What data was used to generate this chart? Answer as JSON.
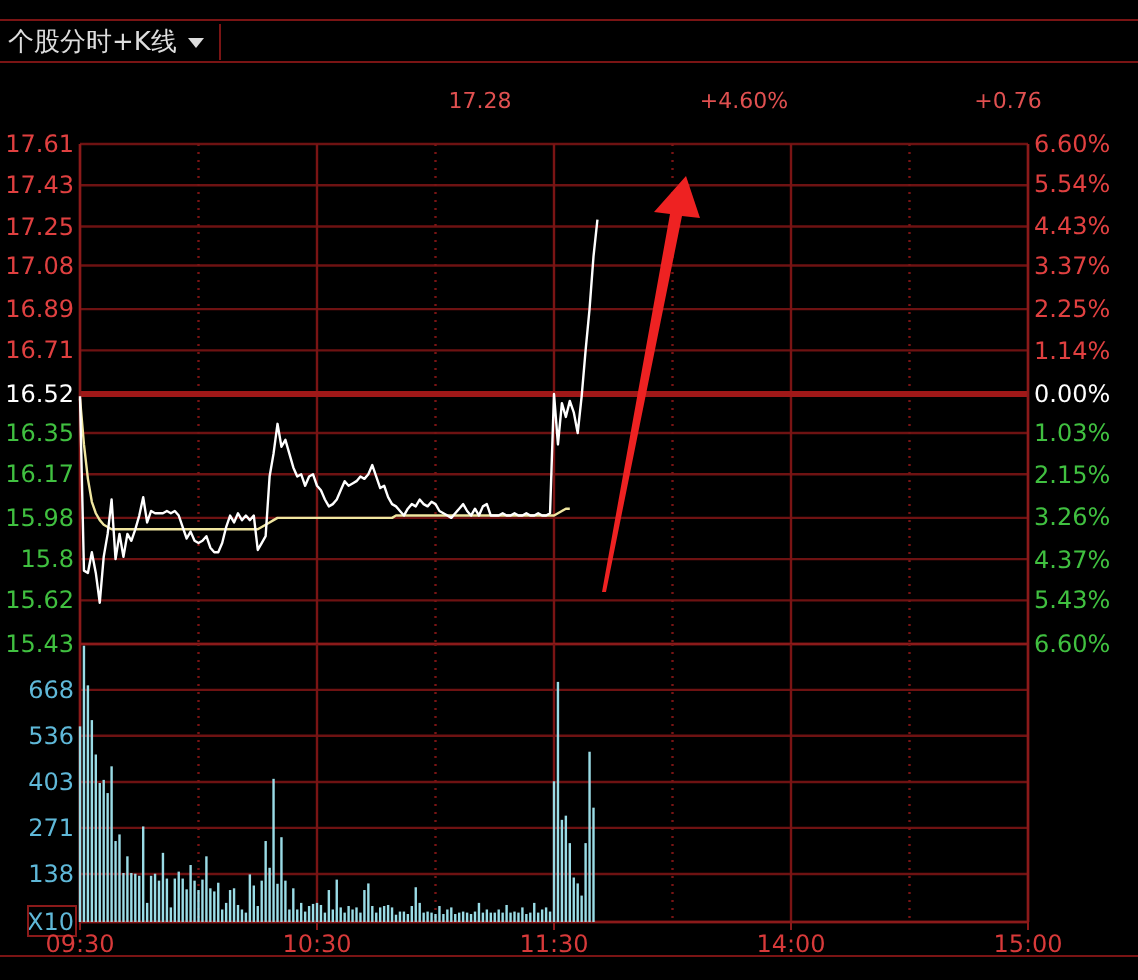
{
  "chart_data": [
    {
      "type": "line",
      "title": "个股分时+K线",
      "annotations": [
        "17.28",
        "+4.60%",
        "+0.76"
      ],
      "categories": [
        null,
        null,
        null,
        null,
        null,
        null,
        null,
        null,
        null,
        null,
        null,
        null,
        null,
        null,
        null,
        null,
        null,
        null,
        null,
        null,
        null,
        null,
        null,
        null,
        null,
        null,
        null,
        null,
        null,
        null,
        null,
        null,
        null,
        null,
        null,
        null,
        null,
        null,
        null,
        null,
        null,
        null,
        null,
        null,
        null,
        null,
        null,
        null,
        null,
        null,
        null,
        null,
        null,
        null,
        null,
        null,
        null,
        null,
        null,
        null,
        null,
        null,
        null,
        null,
        null,
        null,
        null,
        null,
        null,
        null,
        null,
        null,
        null,
        null,
        null,
        null,
        null,
        null,
        null,
        null,
        null,
        null,
        null,
        null,
        null,
        null,
        null,
        null,
        null,
        null,
        null,
        null,
        null,
        null,
        null,
        null,
        null,
        null,
        null,
        null,
        null,
        null,
        null,
        null,
        null,
        null,
        null,
        null,
        null,
        null,
        null,
        null,
        null,
        null,
        null,
        null,
        null,
        null,
        null,
        null,
        null,
        null,
        null,
        null,
        null,
        null,
        null,
        null,
        null,
        null,
        null,
        null,
        null,
        null,
        null,
        null,
        null,
        null,
        null,
        null,
        null,
        null,
        null,
        null,
        null,
        null,
        null,
        null,
        null,
        null,
        null,
        null,
        null,
        null,
        null,
        null,
        null,
        null,
        null,
        null,
        null,
        null,
        null,
        null,
        null,
        null,
        null,
        null,
        null,
        null,
        null,
        null,
        null,
        null,
        null,
        null,
        null,
        null,
        null,
        null,
        null,
        null,
        null,
        null,
        null,
        null,
        null,
        null,
        null,
        null,
        null,
        null,
        null,
        null,
        null,
        null,
        null,
        null,
        null,
        null,
        null,
        null,
        null,
        null,
        null,
        null,
        null,
        null,
        null,
        null,
        null,
        null,
        null,
        null,
        null,
        null,
        null,
        null,
        null,
        null,
        null,
        null,
        null,
        null,
        null,
        null,
        null,
        null,
        null,
        null,
        null,
        null,
        null,
        null,
        null,
        null,
        null,
        null,
        null,
        null,
        null
      ],
      "ylim": [
        15.43,
        17.61
      ],
      "yticks": [
        17.61,
        17.43,
        17.25,
        17.08,
        16.89,
        16.71,
        16.52,
        16.35,
        16.17,
        15.98,
        15.8,
        15.62,
        15.43
      ],
      "y2lim": [
        -6.6,
        6.6
      ],
      "y2ticks": [
        {
          "value": 6.6,
          "label": "6.60%"
        },
        {
          "value": 5.54,
          "label": "5.54%"
        },
        {
          "value": 4.43,
          "label": "4.43%"
        },
        {
          "value": 3.37,
          "label": "3.37%"
        },
        {
          "value": 2.25,
          "label": "2.25%"
        },
        {
          "value": 1.14,
          "label": "1.14%"
        },
        {
          "value": 0,
          "label": "0.00%"
        },
        {
          "value": -1.03,
          "label": "1.03%"
        },
        {
          "value": -2.15,
          "label": "2.15%"
        },
        {
          "value": -3.26,
          "label": "3.26%"
        },
        {
          "value": -4.37,
          "label": "4.37%"
        },
        {
          "value": -5.43,
          "label": "5.43%"
        },
        {
          "value": -6.6,
          "label": "6.60%"
        }
      ],
      "tick_labels": "y",
      "grid": true,
      "ref_lines": [
        {
          "axis": "y",
          "value": 16.52,
          "color": "#a01818"
        }
      ],
      "series": [
        {
          "color": "#f0e6a0",
          "values": [
            16.5,
            16.3,
            16.15,
            16.05,
            16.0,
            15.97,
            15.95,
            15.94,
            15.93,
            15.93,
            15.93,
            15.93,
            15.93,
            15.93,
            15.93,
            15.93,
            15.93,
            15.93,
            15.93,
            15.93,
            15.93,
            15.93,
            15.93,
            15.93,
            15.93,
            15.93,
            15.93,
            15.93,
            15.93,
            15.93,
            15.93,
            15.93,
            15.93,
            15.93,
            15.93,
            15.93,
            15.93,
            15.93,
            15.93,
            15.93,
            15.93,
            15.93,
            15.93,
            15.93,
            15.93,
            15.93,
            15.94,
            15.95,
            15.96,
            15.97,
            15.98,
            15.98,
            15.98,
            15.98,
            15.98,
            15.98,
            15.98,
            15.98,
            15.98,
            15.98,
            15.98,
            15.98,
            15.98,
            15.98,
            15.98,
            15.98,
            15.98,
            15.98,
            15.98,
            15.98,
            15.98,
            15.98,
            15.98,
            15.98,
            15.98,
            15.98,
            15.98,
            15.98,
            15.98,
            15.98,
            15.99,
            15.99,
            15.99,
            15.99,
            15.99,
            15.99,
            15.99,
            15.99,
            15.99,
            15.99,
            15.99,
            15.99,
            15.99,
            15.99,
            15.99,
            15.99,
            15.99,
            15.99,
            15.99,
            15.99,
            15.99,
            15.99,
            15.99,
            15.99,
            15.99,
            15.99,
            15.99,
            15.99,
            15.99,
            15.99,
            15.99,
            15.99,
            15.99,
            15.99,
            15.99,
            15.99,
            15.99,
            15.99,
            15.99,
            15.99,
            15.99,
            16.0,
            16.01,
            16.02,
            16.02,
            null,
            null,
            null,
            null,
            null,
            null,
            null,
            null,
            null,
            null,
            null,
            null,
            null,
            null,
            null,
            null,
            null,
            null,
            null,
            null,
            null,
            null,
            null,
            null,
            null,
            null,
            null,
            null,
            null,
            null,
            null,
            null,
            null,
            null,
            null,
            null,
            null,
            null,
            null,
            null,
            null,
            null,
            null,
            null,
            null,
            null,
            null,
            null,
            null,
            null,
            null,
            null,
            null,
            null,
            null,
            null,
            null,
            null,
            null,
            null,
            null,
            null,
            null,
            null,
            null,
            null,
            null,
            null,
            null,
            null,
            null,
            null,
            null,
            null,
            null,
            null,
            null,
            null,
            null,
            null,
            null,
            null,
            null,
            null,
            null,
            null,
            null,
            null,
            null,
            null,
            null,
            null,
            null,
            null,
            null,
            null,
            null,
            null,
            null,
            null,
            null,
            null,
            null,
            null,
            null,
            null,
            null,
            null,
            null,
            null,
            null,
            null,
            null,
            null,
            null,
            null
          ]
        },
        {
          "color": "#ffffff",
          "values": [
            16.51,
            15.75,
            15.74,
            15.83,
            15.74,
            15.61,
            15.81,
            15.91,
            16.06,
            15.8,
            15.91,
            15.81,
            15.91,
            15.88,
            15.93,
            15.99,
            16.07,
            15.96,
            16.01,
            16.0,
            16.0,
            16.0,
            16.01,
            16.0,
            16.01,
            15.99,
            15.94,
            15.89,
            15.92,
            15.88,
            15.87,
            15.88,
            15.9,
            15.85,
            15.83,
            15.83,
            15.87,
            15.94,
            15.99,
            15.96,
            16.0,
            15.97,
            15.99,
            15.97,
            15.99,
            15.84,
            15.87,
            15.9,
            16.16,
            16.26,
            16.39,
            16.29,
            16.32,
            16.26,
            16.2,
            16.16,
            16.17,
            16.12,
            16.16,
            16.17,
            16.12,
            16.1,
            16.06,
            16.03,
            16.04,
            16.06,
            16.1,
            16.14,
            16.12,
            16.13,
            16.14,
            16.16,
            16.15,
            16.17,
            16.21,
            16.16,
            16.11,
            16.12,
            16.07,
            16.04,
            16.03,
            16.01,
            15.99,
            16.02,
            16.04,
            16.03,
            16.06,
            16.04,
            16.03,
            16.05,
            16.04,
            16.01,
            16.0,
            15.99,
            15.98,
            16.0,
            16.02,
            16.04,
            16.01,
            15.99,
            16.02,
            15.99,
            16.03,
            16.04,
            15.99,
            15.99,
            15.99,
            16.0,
            15.99,
            15.99,
            16.0,
            15.99,
            15.99,
            16.0,
            15.99,
            15.99,
            16.0,
            15.99,
            15.99,
            16.0,
            16.52,
            16.3,
            16.48,
            16.42,
            16.49,
            16.44,
            16.35,
            16.51,
            16.71,
            16.89,
            17.12,
            17.28,
            null,
            null,
            null,
            null,
            null,
            null,
            null,
            null,
            null,
            null,
            null,
            null,
            null,
            null,
            null,
            null,
            null,
            null,
            null,
            null,
            null,
            null,
            null,
            null,
            null,
            null,
            null,
            null,
            null,
            null,
            null,
            null,
            null,
            null,
            null,
            null,
            null,
            null,
            null,
            null,
            null,
            null,
            null,
            null,
            null,
            null,
            null,
            null,
            null,
            null,
            null,
            null,
            null,
            null,
            null,
            null,
            null,
            null,
            null,
            null,
            null,
            null,
            null,
            null,
            null,
            null,
            null,
            null,
            null,
            null,
            null,
            null,
            null,
            null,
            null,
            null,
            null,
            null,
            null,
            null,
            null,
            null,
            null,
            null,
            null,
            null,
            null,
            null,
            null,
            null,
            null,
            null,
            null,
            null,
            null,
            null,
            null,
            null,
            null,
            null,
            null,
            null,
            null,
            null,
            null,
            null,
            null,
            null,
            null
          ]
        }
      ]
    },
    {
      "type": "bar",
      "categories": [
        "09:30",
        null,
        null,
        null,
        null,
        null,
        null,
        null,
        null,
        null,
        null,
        null,
        null,
        null,
        null,
        null,
        null,
        null,
        null,
        null,
        null,
        null,
        null,
        null,
        null,
        null,
        null,
        null,
        null,
        null,
        null,
        null,
        null,
        null,
        null,
        null,
        null,
        null,
        null,
        null,
        null,
        null,
        null,
        null,
        null,
        null,
        null,
        null,
        null,
        null,
        null,
        null,
        null,
        null,
        null,
        null,
        null,
        null,
        null,
        null,
        "10:30",
        null,
        null,
        null,
        null,
        null,
        null,
        null,
        null,
        null,
        null,
        null,
        null,
        null,
        null,
        null,
        null,
        null,
        null,
        null,
        null,
        null,
        null,
        null,
        null,
        null,
        null,
        null,
        null,
        null,
        null,
        null,
        null,
        null,
        null,
        null,
        null,
        null,
        null,
        null,
        null,
        null,
        null,
        null,
        null,
        null,
        null,
        null,
        null,
        null,
        null,
        null,
        null,
        null,
        null,
        null,
        null,
        null,
        null,
        null,
        "11:30",
        null,
        null,
        null,
        null,
        null,
        null,
        null,
        null,
        null,
        null,
        null,
        null,
        null,
        null,
        null,
        null,
        null,
        null,
        null,
        null,
        null,
        null,
        null,
        null,
        null,
        null,
        null,
        null,
        null,
        null,
        null,
        null,
        null,
        null,
        null,
        null,
        null,
        null,
        null,
        null,
        null,
        null,
        null,
        null,
        null,
        null,
        null,
        null,
        null,
        null,
        null,
        null,
        null,
        null,
        null,
        null,
        null,
        null,
        null,
        "14:00",
        null,
        null,
        null,
        null,
        null,
        null,
        null,
        null,
        null,
        null,
        null,
        null,
        null,
        null,
        null,
        null,
        null,
        null,
        null,
        null,
        null,
        null,
        null,
        null,
        null,
        null,
        null,
        null,
        null,
        null,
        null,
        null,
        null,
        null,
        null,
        null,
        null,
        null,
        null,
        null,
        null,
        null,
        null,
        null,
        null,
        null,
        null,
        null,
        null,
        null,
        null,
        null,
        null,
        null,
        null,
        null,
        null,
        null,
        null,
        "15:00"
      ],
      "ylim": [
        0,
        800
      ],
      "yticks": [
        {
          "value": 0,
          "label": "X10"
        },
        138,
        271,
        403,
        536,
        668
      ],
      "grid": true,
      "series": [
        {
          "color": "#9adce6",
          "values": [
            563,
            795,
            681,
            581,
            482,
            400,
            409,
            371,
            448,
            233,
            252,
            141,
            189,
            141,
            139,
            133,
            275,
            55,
            133,
            139,
            119,
            199,
            125,
            42,
            125,
            145,
            125,
            94,
            164,
            119,
            92,
            122,
            189,
            97,
            88,
            113,
            36,
            55,
            92,
            97,
            49,
            36,
            27,
            137,
            105,
            46,
            119,
            233,
            156,
            412,
            110,
            244,
            119,
            36,
            97,
            36,
            55,
            30,
            46,
            52,
            55,
            49,
            27,
            92,
            36,
            122,
            42,
            27,
            46,
            36,
            42,
            27,
            92,
            111,
            46,
            27,
            42,
            46,
            49,
            42,
            21,
            30,
            30,
            23,
            46,
            100,
            55,
            27,
            30,
            27,
            23,
            46,
            23,
            36,
            42,
            23,
            27,
            30,
            27,
            23,
            30,
            55,
            27,
            36,
            27,
            27,
            36,
            27,
            49,
            27,
            30,
            27,
            42,
            23,
            27,
            55,
            27,
            36,
            42,
            30,
            405,
            691,
            294,
            306,
            227,
            128,
            111,
            76,
            227,
            490,
            329,
            null,
            null,
            null,
            null,
            null,
            null,
            null,
            null,
            null,
            null,
            null,
            null,
            null,
            null,
            null,
            null,
            null,
            null,
            null,
            null,
            null,
            null,
            null,
            null,
            null,
            null,
            null,
            null,
            null,
            null,
            null,
            null,
            null,
            null,
            null,
            null,
            null,
            null,
            null,
            null,
            null,
            null,
            null,
            null,
            null,
            null,
            null,
            null,
            null,
            null,
            null,
            null,
            null,
            null,
            null,
            null,
            null,
            null,
            null,
            null,
            null,
            null,
            null,
            null,
            null,
            null,
            null,
            null,
            null,
            null,
            null,
            null,
            null,
            null,
            null,
            null,
            null,
            null,
            null,
            null,
            null,
            null,
            null,
            null,
            null,
            null,
            null,
            null,
            null,
            null,
            null,
            null,
            null,
            null,
            null,
            null,
            null,
            null,
            null,
            null,
            null,
            null,
            null,
            null,
            null,
            null,
            null,
            null,
            null,
            null
          ]
        }
      ]
    }
  ]
}
